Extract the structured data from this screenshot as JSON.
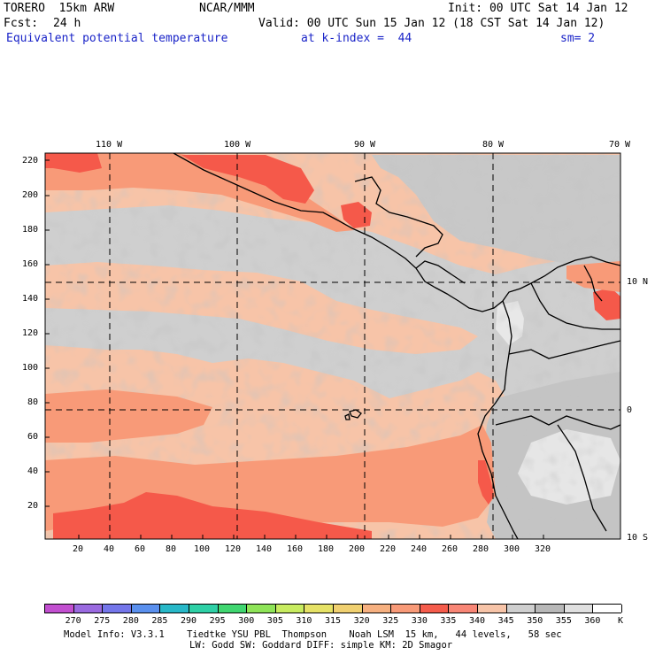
{
  "header": {
    "model": "TORERO  15km ARW",
    "center": "NCAR/MMM",
    "init": "Init: 00 UTC Sat 14 Jan 12",
    "fcst_label": "Fcst:",
    "fcst_value": "24 h",
    "valid": "Valid: 00 UTC Sun 15 Jan 12 (18 CST Sat 14 Jan 12)",
    "field": "Equivalent potential temperature",
    "level": "at k-index =  44",
    "smooth": "sm= 2"
  },
  "map": {
    "top_lon_labels": [
      "110 W",
      "100 W",
      "90 W",
      "80 W",
      "70 W"
    ],
    "right_lat_labels": [
      "10 N",
      "0",
      "10 S"
    ],
    "y_axis_ticks": [
      "220",
      "200",
      "180",
      "160",
      "140",
      "120",
      "100",
      "80",
      "60",
      "40",
      "20"
    ],
    "x_axis_ticks": [
      "20",
      "40",
      "60",
      "80",
      "100",
      "120",
      "140",
      "160",
      "180",
      "200",
      "220",
      "240",
      "260",
      "280",
      "300",
      "320"
    ]
  },
  "colorbar": {
    "unit": "K",
    "labels": [
      "270",
      "275",
      "280",
      "285",
      "290",
      "295",
      "300",
      "305",
      "310",
      "315",
      "320",
      "325",
      "330",
      "335",
      "340",
      "345",
      "350",
      "355",
      "360"
    ],
    "colors": [
      "#c24fd0",
      "#9a6ae0",
      "#7476ea",
      "#5a90ee",
      "#28b8c8",
      "#2ed0a6",
      "#40d670",
      "#8ee458",
      "#c8ec60",
      "#e6e266",
      "#f0d070",
      "#f6b080",
      "#f89a78",
      "#f55c4c",
      "#f88676",
      "#f7c4a8",
      "#cfcfcf",
      "#b8b8b8",
      "#e0e0e0",
      "#ffffff"
    ]
  },
  "footer": {
    "line1": "Model Info: V3.3.1    Tiedtke YSU PBL  Thompson    Noah LSM  15 km,   44 levels,   58 sec",
    "line2": "LW: Godd SW: Goddard DIFF: simple KM: 2D Smagor"
  }
}
